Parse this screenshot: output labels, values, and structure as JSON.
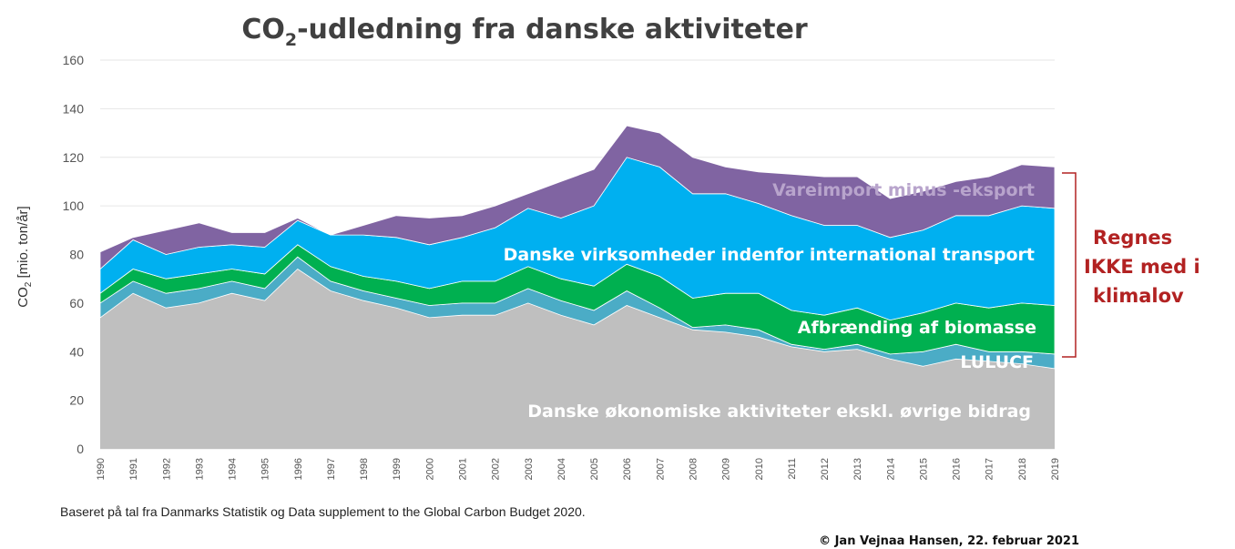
{
  "chart_data": {
    "type": "area",
    "stacked": true,
    "title_main": "CO",
    "title_sub": "2",
    "title_rest": "-udledning fra danske aktiviteter",
    "ylabel_main": "CO",
    "ylabel_sub": "2",
    "ylabel_rest": " [mio. ton/år]",
    "ylim": [
      0,
      160
    ],
    "yticks": [
      "0",
      "20",
      "40",
      "60",
      "80",
      "100",
      "120",
      "140",
      "160"
    ],
    "grid": true,
    "x": [
      "1990",
      "1991",
      "1992",
      "1993",
      "1994",
      "1995",
      "1996",
      "1997",
      "1998",
      "1999",
      "2000",
      "2001",
      "2002",
      "2003",
      "2004",
      "2005",
      "2006",
      "2007",
      "2008",
      "2009",
      "2010",
      "2011",
      "2012",
      "2013",
      "2014",
      "2015",
      "2016",
      "2017",
      "2018",
      "2019"
    ],
    "series": [
      {
        "name": "Danske økonomiske aktiviteter ekskl. øvrige bidrag",
        "color": "#bfbfbf",
        "values": [
          54,
          64,
          58,
          60,
          64,
          61,
          74,
          65,
          61,
          58,
          54,
          55,
          55,
          60,
          55,
          51,
          59,
          54,
          49,
          48,
          46,
          42,
          40,
          41,
          37,
          34,
          37,
          36,
          35,
          33
        ]
      },
      {
        "name": "LULUCF",
        "color": "#4bacc6",
        "values": [
          6,
          5,
          6,
          6,
          5,
          5,
          5,
          4,
          4,
          4,
          5,
          5,
          5,
          6,
          6,
          6,
          6,
          4,
          1,
          3,
          3,
          1,
          1,
          2,
          2,
          6,
          6,
          4,
          5,
          6
        ]
      },
      {
        "name": "Afbrænding af biomasse",
        "color": "#00b050",
        "values": [
          4,
          5,
          6,
          6,
          5,
          6,
          5,
          6,
          6,
          7,
          7,
          9,
          9,
          9,
          9,
          10,
          11,
          13,
          12,
          13,
          15,
          14,
          14,
          15,
          14,
          16,
          17,
          18,
          20,
          20
        ]
      },
      {
        "name": "Danske virksomheder indenfor international transport",
        "color": "#00b0f0",
        "values": [
          10,
          12,
          10,
          11,
          10,
          11,
          10,
          13,
          17,
          18,
          18,
          18,
          22,
          24,
          25,
          33,
          44,
          45,
          43,
          41,
          37,
          39,
          37,
          34,
          34,
          34,
          36,
          38,
          40,
          40
        ]
      },
      {
        "name": "Vareimport minus -eksport",
        "color": "#8064a2",
        "values": [
          7,
          1,
          10,
          10,
          5,
          6,
          1,
          0,
          4,
          9,
          11,
          9,
          9,
          6,
          15,
          15,
          13,
          14,
          15,
          11,
          13,
          17,
          20,
          20,
          16,
          16,
          14,
          16,
          17,
          17
        ]
      }
    ],
    "bracket_label": [
      "Regnes",
      "IKKE med i",
      "klimalov"
    ],
    "bracket_color": "#b22222"
  },
  "footnote": "Baseret på tal fra Danmarks Statistik og Data supplement to the Global Carbon Budget 2020.",
  "credit": "© Jan Vejnaa Hansen, 22. februar 2021"
}
